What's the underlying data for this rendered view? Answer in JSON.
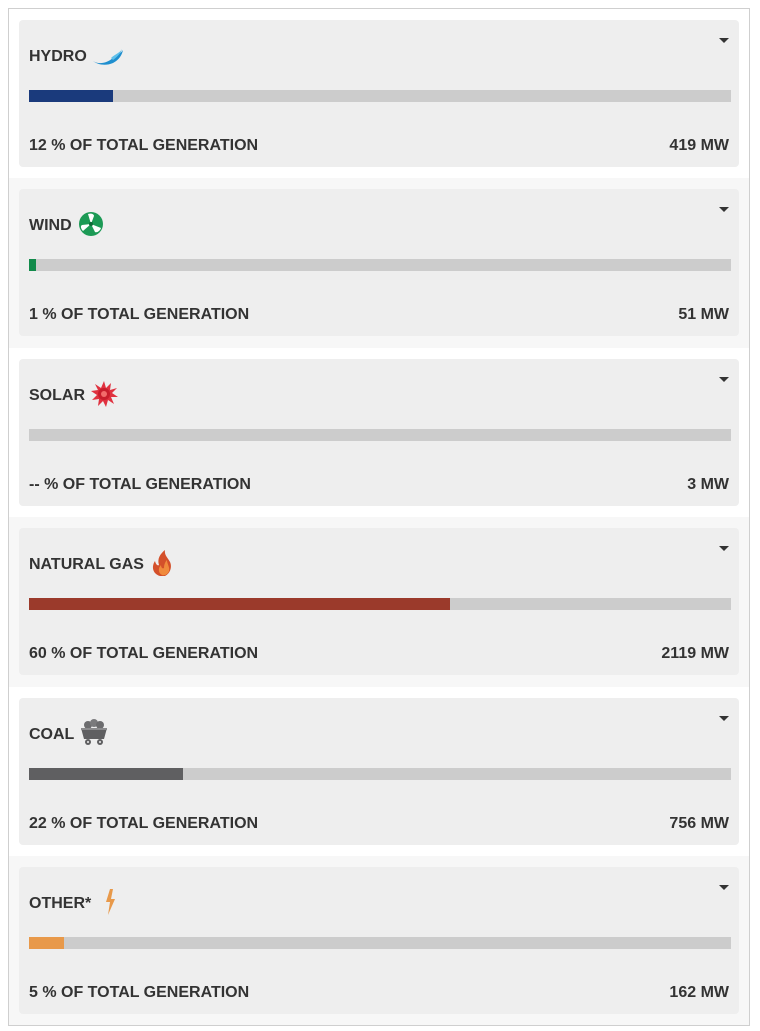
{
  "sources": [
    {
      "name": "HYDRO",
      "icon": "hydro-wave-icon",
      "color": "#1a3a7c",
      "share": 0.12,
      "percent_label": "12 % OF TOTAL GENERATION",
      "mw_label": "419 MW"
    },
    {
      "name": "WIND",
      "icon": "wind-turbine-icon",
      "color": "#118a4a",
      "share": 0.01,
      "percent_label": "1 % OF TOTAL GENERATION",
      "mw_label": "51 MW"
    },
    {
      "name": "SOLAR",
      "icon": "sun-icon",
      "color": "#d62b3b",
      "share": 0.0,
      "percent_label": "-- % OF TOTAL GENERATION",
      "mw_label": "3 MW"
    },
    {
      "name": "NATURAL GAS",
      "icon": "flame-icon",
      "color": "#9b3a2b",
      "share": 0.6,
      "percent_label": "60 % OF TOTAL GENERATION",
      "mw_label": "2119 MW"
    },
    {
      "name": "COAL",
      "icon": "coal-cart-icon",
      "color": "#5f5f61",
      "share": 0.22,
      "percent_label": "22 % OF TOTAL GENERATION",
      "mw_label": "756 MW"
    },
    {
      "name": "OTHER*",
      "icon": "lightning-bolt-icon",
      "color": "#e8994a",
      "share": 0.05,
      "percent_label": "5 % OF TOTAL GENERATION",
      "mw_label": "162 MW"
    }
  ]
}
